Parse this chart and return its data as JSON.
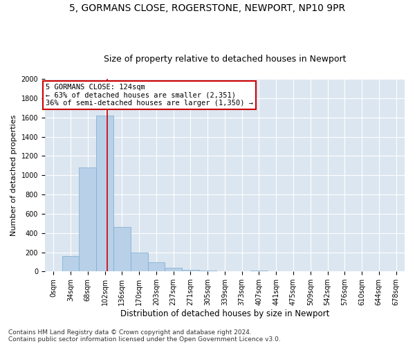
{
  "title1": "5, GORMANS CLOSE, ROGERSTONE, NEWPORT, NP10 9PR",
  "title2": "Size of property relative to detached houses in Newport",
  "xlabel": "Distribution of detached houses by size in Newport",
  "ylabel": "Number of detached properties",
  "bar_labels": [
    "0sqm",
    "34sqm",
    "68sqm",
    "102sqm",
    "136sqm",
    "170sqm",
    "203sqm",
    "237sqm",
    "271sqm",
    "305sqm",
    "339sqm",
    "373sqm",
    "407sqm",
    "441sqm",
    "475sqm",
    "509sqm",
    "542sqm",
    "576sqm",
    "610sqm",
    "644sqm",
    "678sqm"
  ],
  "bar_values": [
    0,
    160,
    1080,
    1620,
    460,
    200,
    95,
    35,
    20,
    10,
    5,
    2,
    12,
    0,
    0,
    0,
    0,
    0,
    0,
    0,
    0
  ],
  "bar_color": "#b8d0e8",
  "bar_edge_color": "#7aaacf",
  "vline_x": 3.65,
  "vline_color": "#cc0000",
  "annotation_text": "5 GORMANS CLOSE: 124sqm\n← 63% of detached houses are smaller (2,351)\n36% of semi-detached houses are larger (1,350) →",
  "annotation_box_color": "#ffffff",
  "annotation_box_edge": "#cc0000",
  "ylim": [
    0,
    2000
  ],
  "yticks": [
    0,
    200,
    400,
    600,
    800,
    1000,
    1200,
    1400,
    1600,
    1800,
    2000
  ],
  "background_color": "#dce6f0",
  "footnote": "Contains HM Land Registry data © Crown copyright and database right 2024.\nContains public sector information licensed under the Open Government Licence v3.0.",
  "title1_fontsize": 10,
  "title2_fontsize": 9,
  "xlabel_fontsize": 8.5,
  "ylabel_fontsize": 8,
  "tick_fontsize": 7,
  "annot_fontsize": 7.5,
  "footnote_fontsize": 6.5
}
